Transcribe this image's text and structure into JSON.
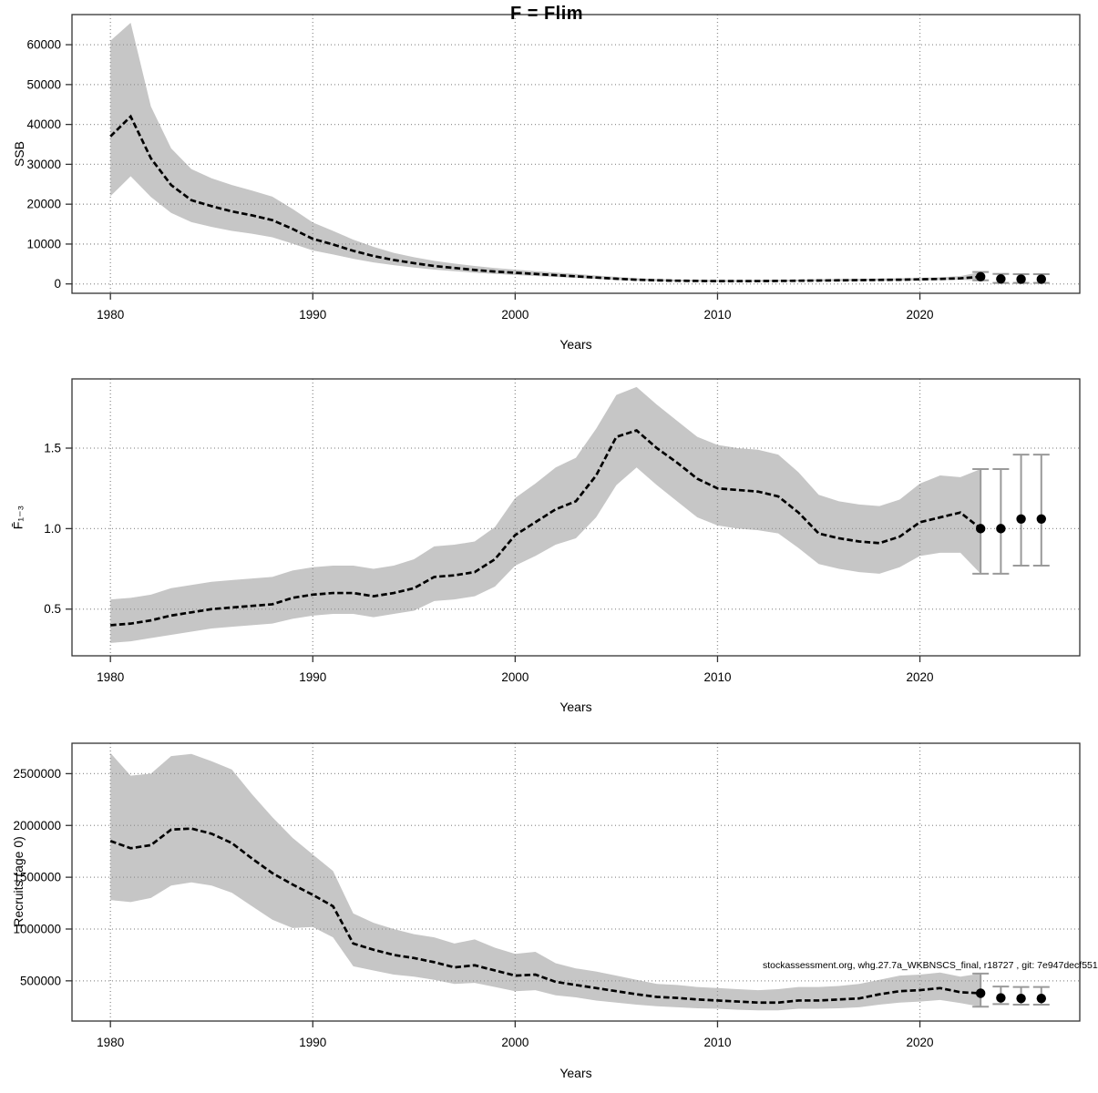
{
  "title": "F = Flim",
  "attribution": "stockassessment.org, whg.27.7a_WKBNSCS_final, r18727 , git: 7e947decf551",
  "colors": {
    "band": "#c6c6c6",
    "line": "#000000",
    "grid": "#929292",
    "error_bar": "#9a9a9a",
    "dot": "#000000",
    "box": "#333333",
    "text": "#000000"
  },
  "chart_data": [
    {
      "type": "line",
      "panel": "ssb",
      "ylabel": "SSB",
      "xlabel": "Years",
      "grid": true,
      "x_ticks": [
        1980,
        1990,
        2000,
        2010,
        2020
      ],
      "x_tick_labels": [
        "1980",
        "1990",
        "2000",
        "2010",
        "2020"
      ],
      "y_ticks": [
        0,
        10000,
        20000,
        30000,
        40000,
        50000,
        60000
      ],
      "y_tick_labels": [
        "0",
        "10000",
        "20000",
        "30000",
        "40000",
        "50000",
        "60000"
      ],
      "xlim": [
        1978.1,
        2027.9
      ],
      "ylim": [
        -2350,
        67560
      ],
      "x": [
        1980,
        1981,
        1982,
        1983,
        1984,
        1985,
        1986,
        1987,
        1988,
        1989,
        1990,
        1991,
        1992,
        1993,
        1994,
        1995,
        1996,
        1997,
        1998,
        1999,
        2000,
        2001,
        2002,
        2003,
        2004,
        2005,
        2006,
        2007,
        2008,
        2009,
        2010,
        2011,
        2012,
        2013,
        2014,
        2015,
        2016,
        2017,
        2018,
        2019,
        2020,
        2021,
        2022,
        2023
      ],
      "estimate": [
        37000,
        42000,
        31500,
        24800,
        21000,
        19500,
        18200,
        17200,
        16000,
        13800,
        11300,
        9900,
        8300,
        7000,
        6000,
        5200,
        4500,
        4000,
        3500,
        3100,
        2800,
        2500,
        2200,
        1900,
        1600,
        1300,
        1050,
        900,
        800,
        750,
        700,
        700,
        720,
        750,
        800,
        850,
        900,
        950,
        1000,
        1050,
        1150,
        1250,
        1400,
        1800
      ],
      "ci_lower": [
        22000,
        27000,
        21800,
        17800,
        15500,
        14300,
        13300,
        12600,
        11700,
        10100,
        8400,
        7400,
        6300,
        5400,
        4700,
        4100,
        3600,
        3200,
        2800,
        2500,
        2250,
        2000,
        1750,
        1500,
        1250,
        1000,
        820,
        700,
        620,
        580,
        540,
        540,
        560,
        580,
        620,
        660,
        700,
        740,
        780,
        820,
        880,
        950,
        1030,
        900
      ],
      "ci_upper": [
        61000,
        65500,
        44500,
        34000,
        28800,
        26500,
        24800,
        23400,
        21900,
        18800,
        15400,
        13300,
        11100,
        9300,
        7800,
        6700,
        5800,
        5100,
        4500,
        4000,
        3600,
        3200,
        2850,
        2500,
        2100,
        1750,
        1420,
        1220,
        1080,
        1010,
        950,
        950,
        970,
        1010,
        1080,
        1150,
        1210,
        1280,
        1350,
        1430,
        1510,
        1660,
        1950,
        3000
      ],
      "forecast": {
        "x": [
          2023,
          2024,
          2025,
          2026
        ],
        "estimate": [
          1800,
          1250,
          1200,
          1200
        ],
        "ci_lower": [
          900,
          250,
          250,
          250
        ],
        "ci_upper": [
          3000,
          2500,
          2450,
          2450
        ]
      }
    },
    {
      "type": "line",
      "panel": "fbar",
      "ylabel": "F̄₁₋₃",
      "xlabel": "Years",
      "grid": true,
      "x_ticks": [
        1980,
        1990,
        2000,
        2010,
        2020
      ],
      "x_tick_labels": [
        "1980",
        "1990",
        "2000",
        "2010",
        "2020"
      ],
      "y_ticks": [
        0.5,
        1.0,
        1.5
      ],
      "y_tick_labels": [
        "0.5",
        "1.0",
        "1.5"
      ],
      "xlim": [
        1978.1,
        2027.9
      ],
      "ylim": [
        0.21,
        1.93
      ],
      "x": [
        1980,
        1981,
        1982,
        1983,
        1984,
        1985,
        1986,
        1987,
        1988,
        1989,
        1990,
        1991,
        1992,
        1993,
        1994,
        1995,
        1996,
        1997,
        1998,
        1999,
        2000,
        2001,
        2002,
        2003,
        2004,
        2005,
        2006,
        2007,
        2008,
        2009,
        2010,
        2011,
        2012,
        2013,
        2014,
        2015,
        2016,
        2017,
        2018,
        2019,
        2020,
        2021,
        2022,
        2023
      ],
      "estimate": [
        0.4,
        0.41,
        0.43,
        0.46,
        0.48,
        0.5,
        0.51,
        0.52,
        0.53,
        0.57,
        0.59,
        0.6,
        0.6,
        0.58,
        0.6,
        0.63,
        0.7,
        0.71,
        0.73,
        0.81,
        0.96,
        1.04,
        1.12,
        1.17,
        1.33,
        1.57,
        1.61,
        1.5,
        1.41,
        1.31,
        1.25,
        1.24,
        1.23,
        1.2,
        1.1,
        0.97,
        0.94,
        0.92,
        0.91,
        0.95,
        1.04,
        1.07,
        1.1,
        1.0
      ],
      "ci_lower": [
        0.29,
        0.3,
        0.32,
        0.34,
        0.36,
        0.38,
        0.39,
        0.4,
        0.41,
        0.44,
        0.46,
        0.47,
        0.47,
        0.45,
        0.47,
        0.49,
        0.55,
        0.56,
        0.58,
        0.64,
        0.77,
        0.83,
        0.9,
        0.94,
        1.07,
        1.27,
        1.38,
        1.27,
        1.17,
        1.07,
        1.02,
        1.0,
        0.99,
        0.97,
        0.88,
        0.78,
        0.75,
        0.73,
        0.72,
        0.76,
        0.83,
        0.85,
        0.85,
        0.72
      ],
      "ci_upper": [
        0.56,
        0.57,
        0.59,
        0.63,
        0.65,
        0.67,
        0.68,
        0.69,
        0.7,
        0.74,
        0.76,
        0.77,
        0.77,
        0.75,
        0.77,
        0.81,
        0.89,
        0.9,
        0.92,
        1.01,
        1.19,
        1.28,
        1.38,
        1.44,
        1.62,
        1.83,
        1.88,
        1.77,
        1.67,
        1.57,
        1.52,
        1.5,
        1.49,
        1.46,
        1.35,
        1.21,
        1.17,
        1.15,
        1.14,
        1.18,
        1.28,
        1.33,
        1.32,
        1.37
      ],
      "forecast": {
        "x": [
          2023,
          2024,
          2025,
          2026
        ],
        "estimate": [
          1.0,
          1.0,
          1.06,
          1.06
        ],
        "ci_lower": [
          0.72,
          0.72,
          0.77,
          0.77
        ],
        "ci_upper": [
          1.37,
          1.37,
          1.46,
          1.46
        ]
      }
    },
    {
      "type": "line",
      "panel": "recruits",
      "ylabel": "Recruits (age 0)",
      "xlabel": "Years",
      "grid": true,
      "x_ticks": [
        1980,
        1990,
        2000,
        2010,
        2020
      ],
      "x_tick_labels": [
        "1980",
        "1990",
        "2000",
        "2010",
        "2020"
      ],
      "y_ticks": [
        500000,
        1000000,
        1500000,
        2000000,
        2500000
      ],
      "y_tick_labels": [
        "500000",
        "1000000",
        "1500000",
        "2000000",
        "2500000"
      ],
      "xlim": [
        1978.1,
        2027.9
      ],
      "ylim": [
        111700,
        2793700
      ],
      "x": [
        1980,
        1981,
        1982,
        1983,
        1984,
        1985,
        1986,
        1987,
        1988,
        1989,
        1990,
        1991,
        1992,
        1993,
        1994,
        1995,
        1996,
        1997,
        1998,
        1999,
        2000,
        2001,
        2002,
        2003,
        2004,
        2005,
        2006,
        2007,
        2008,
        2009,
        2010,
        2011,
        2012,
        2013,
        2014,
        2015,
        2016,
        2017,
        2018,
        2019,
        2020,
        2021,
        2022,
        2023
      ],
      "estimate": [
        1850000,
        1780000,
        1810000,
        1960000,
        1970000,
        1920000,
        1830000,
        1680000,
        1540000,
        1430000,
        1330000,
        1220000,
        860000,
        800000,
        750000,
        720000,
        680000,
        630000,
        650000,
        600000,
        550000,
        560000,
        490000,
        460000,
        430000,
        400000,
        370000,
        345000,
        335000,
        320000,
        310000,
        300000,
        290000,
        290000,
        310000,
        310000,
        320000,
        330000,
        370000,
        400000,
        410000,
        430000,
        390000,
        380000
      ],
      "ci_lower": [
        1280000,
        1260000,
        1300000,
        1420000,
        1450000,
        1420000,
        1350000,
        1220000,
        1090000,
        1010000,
        1020000,
        920000,
        640000,
        600000,
        560000,
        540000,
        510000,
        470000,
        480000,
        440000,
        400000,
        410000,
        360000,
        340000,
        310000,
        290000,
        270000,
        255000,
        245000,
        235000,
        230000,
        220000,
        215000,
        215000,
        230000,
        230000,
        235000,
        245000,
        270000,
        290000,
        300000,
        315000,
        285000,
        250000
      ],
      "ci_upper": [
        2700000,
        2480000,
        2500000,
        2670000,
        2690000,
        2620000,
        2540000,
        2300000,
        2080000,
        1880000,
        1720000,
        1560000,
        1150000,
        1060000,
        1000000,
        950000,
        920000,
        860000,
        900000,
        820000,
        760000,
        780000,
        670000,
        620000,
        590000,
        550000,
        510000,
        470000,
        460000,
        440000,
        430000,
        420000,
        410000,
        420000,
        440000,
        440000,
        450000,
        470000,
        510000,
        550000,
        560000,
        580000,
        540000,
        570000
      ],
      "forecast": {
        "x": [
          2023,
          2024,
          2025,
          2026
        ],
        "estimate": [
          380000,
          335000,
          330000,
          330000
        ],
        "ci_lower": [
          250000,
          275000,
          270000,
          270000
        ],
        "ci_upper": [
          570000,
          445000,
          440000,
          440000
        ]
      }
    }
  ]
}
